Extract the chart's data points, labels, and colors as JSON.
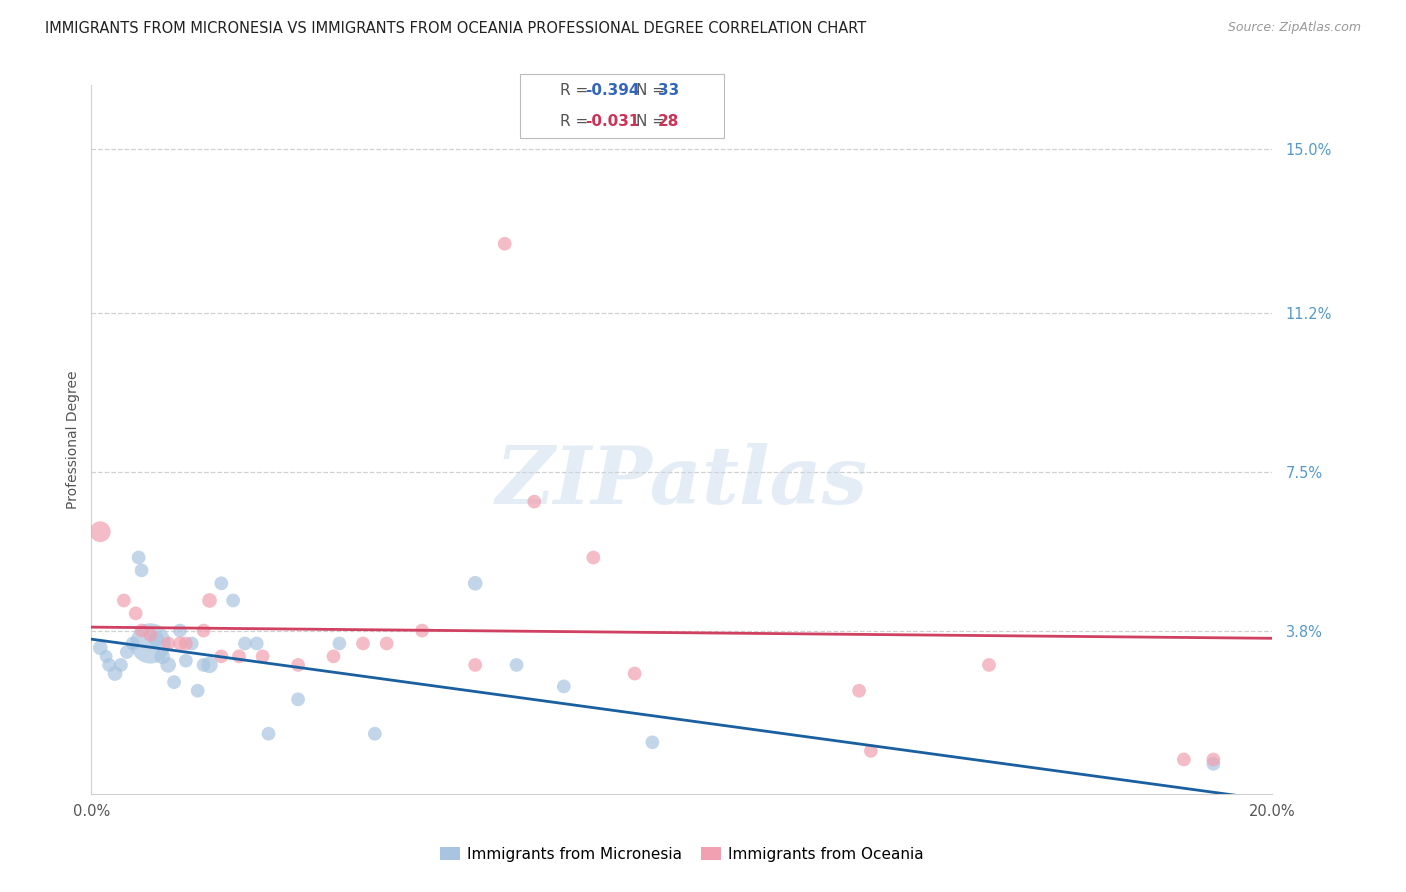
{
  "title": "IMMIGRANTS FROM MICRONESIA VS IMMIGRANTS FROM OCEANIA PROFESSIONAL DEGREE CORRELATION CHART",
  "source": "Source: ZipAtlas.com",
  "ylabel": "Professional Degree",
  "legend_labels": [
    "Immigrants from Micronesia",
    "Immigrants from Oceania"
  ],
  "blue_R": -0.394,
  "blue_N": 33,
  "pink_R": -0.031,
  "pink_N": 28,
  "blue_color": "#a8c4e0",
  "blue_line_color": "#1a5fa0",
  "pink_color": "#f0a0b0",
  "pink_line_color": "#d04060",
  "blue_scatter_x": [
    0.15,
    0.25,
    0.3,
    0.4,
    0.5,
    0.6,
    0.7,
    0.8,
    0.85,
    1.0,
    1.1,
    1.2,
    1.3,
    1.4,
    1.5,
    1.6,
    1.7,
    1.8,
    1.9,
    2.0,
    2.2,
    2.4,
    2.6,
    2.8,
    3.0,
    3.5,
    4.2,
    4.8,
    6.5,
    7.2,
    8.0,
    9.5,
    19.0
  ],
  "blue_scatter_y": [
    3.4,
    3.2,
    3.0,
    2.8,
    3.0,
    3.3,
    3.5,
    5.5,
    5.2,
    3.5,
    3.6,
    3.2,
    3.0,
    2.6,
    3.8,
    3.1,
    3.5,
    2.4,
    3.0,
    3.0,
    4.9,
    4.5,
    3.5,
    3.5,
    1.4,
    2.2,
    3.5,
    1.4,
    4.9,
    3.0,
    2.5,
    1.2,
    0.7
  ],
  "blue_scatter_size": [
    40,
    30,
    35,
    40,
    35,
    35,
    35,
    35,
    35,
    45,
    45,
    45,
    45,
    35,
    35,
    35,
    35,
    35,
    35,
    50,
    35,
    35,
    35,
    35,
    35,
    35,
    35,
    35,
    40,
    35,
    35,
    35,
    35
  ],
  "blue_large_idx": 9,
  "blue_large_size": 300,
  "pink_scatter_x": [
    0.15,
    0.55,
    0.75,
    0.85,
    1.0,
    1.3,
    1.5,
    1.6,
    1.9,
    2.0,
    2.2,
    2.5,
    2.9,
    3.5,
    4.1,
    4.6,
    5.0,
    5.6,
    6.5,
    7.0,
    7.5,
    8.5,
    9.2,
    13.0,
    13.2,
    15.2,
    18.5,
    19.0
  ],
  "pink_scatter_y": [
    6.1,
    4.5,
    4.2,
    3.8,
    3.7,
    3.5,
    3.5,
    3.5,
    3.8,
    4.5,
    3.2,
    3.2,
    3.2,
    3.0,
    3.2,
    3.5,
    3.5,
    3.8,
    3.0,
    12.8,
    6.8,
    5.5,
    2.8,
    2.4,
    1.0,
    3.0,
    0.8,
    0.8
  ],
  "pink_scatter_size": [
    40,
    35,
    35,
    35,
    35,
    35,
    35,
    35,
    35,
    40,
    35,
    35,
    35,
    35,
    35,
    35,
    35,
    35,
    35,
    35,
    35,
    35,
    35,
    35,
    35,
    35,
    35,
    35
  ],
  "pink_large_idx": 0,
  "pink_large_size": 80,
  "xmin": 0.0,
  "xmax": 20.0,
  "ymin": 0.0,
  "ymax": 16.5,
  "ytick_vals": [
    3.8,
    7.5,
    11.2,
    15.0
  ],
  "ytick_labels": [
    "3.8%",
    "7.5%",
    "11.2%",
    "15.0%"
  ],
  "xtick_vals": [
    0.0,
    5.0,
    10.0,
    15.0,
    20.0
  ],
  "xtick_labels": [
    "0.0%",
    "",
    "",
    "",
    "20.0%"
  ],
  "bg_color": "#ffffff",
  "grid_color": "#d0d0d0",
  "blue_line_start_y": 3.6,
  "blue_line_end_y": -0.15,
  "pink_line_start_y": 3.88,
  "pink_line_end_y": 3.62
}
